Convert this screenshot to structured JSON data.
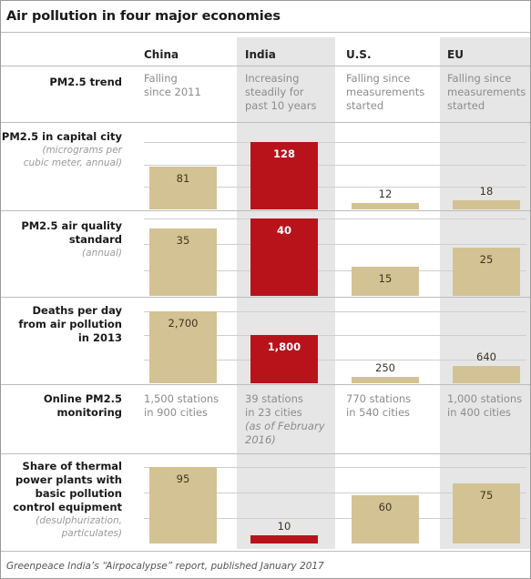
{
  "title": "Air pollution in four major economies",
  "footnote": "Greenpeace India’s “Airpocalypse” report, published January 2017",
  "columns": [
    "China",
    "India",
    "U.S.",
    "EU"
  ],
  "colors": {
    "tan": "#d3c293",
    "red": "#b8131b",
    "shade": "#e6e6e6"
  },
  "rows": {
    "trend": {
      "label": "PM2.5 trend",
      "cells": [
        [
          "Falling",
          "since 2011"
        ],
        [
          "Increasing",
          "steadily for",
          "past 10 years"
        ],
        [
          "Falling since",
          "measurements",
          "started"
        ],
        [
          "Falling since",
          "measurements",
          "started"
        ]
      ]
    },
    "capital": {
      "label": [
        "PM2.5 in capital city"
      ],
      "sub": [
        "(micrograms per",
        "cubic meter, annual)"
      ]
    },
    "standard": {
      "label": [
        "PM2.5 air quality",
        "standard"
      ],
      "sub": [
        "(annual)"
      ]
    },
    "deaths": {
      "label": [
        "Deaths per day",
        "from air pollution",
        "in 2013"
      ]
    },
    "monitoring": {
      "label": [
        "Online PM2.5",
        "monitoring"
      ],
      "cells": [
        [
          "1,500 stations",
          "in 900 cities"
        ],
        [
          "39 stations",
          "in 23 cities"
        ],
        [
          "770 stations",
          "in 540 cities"
        ],
        [
          "1,000 stations",
          "in 400 cities"
        ]
      ],
      "india_note": [
        "(as of February",
        "2016)"
      ]
    },
    "thermal": {
      "label": [
        "Share of thermal",
        "power plants with",
        "basic pollution",
        "control equipment"
      ],
      "sub": [
        "(desulphurization,",
        "particulates)"
      ]
    }
  },
  "chart_data": [
    {
      "type": "bar",
      "title": "PM2.5 in capital city",
      "subtitle": "(micrograms per cubic meter, annual)",
      "categories": [
        "China",
        "India",
        "U.S.",
        "EU"
      ],
      "values": [
        81,
        128,
        12,
        18
      ],
      "labels": [
        "81",
        "128",
        "12",
        "18"
      ],
      "highlight": "India"
    },
    {
      "type": "bar",
      "title": "PM2.5 air quality standard",
      "subtitle": "(annual)",
      "categories": [
        "China",
        "India",
        "U.S.",
        "EU"
      ],
      "values": [
        35,
        40,
        15,
        25
      ],
      "labels": [
        "35",
        "40",
        "15",
        "25"
      ],
      "highlight": "India"
    },
    {
      "type": "bar",
      "title": "Deaths per day from air pollution in 2013",
      "categories": [
        "China",
        "India",
        "U.S.",
        "EU"
      ],
      "values": [
        2700,
        1800,
        250,
        640
      ],
      "labels": [
        "2,700",
        "1,800",
        "250",
        "640"
      ],
      "highlight": "India"
    },
    {
      "type": "bar",
      "title": "Share of thermal power plants with basic pollution control equipment",
      "subtitle": "(desulphurization, particulates)",
      "categories": [
        "China",
        "India",
        "U.S.",
        "EU"
      ],
      "values": [
        95,
        10,
        60,
        75
      ],
      "labels": [
        "95",
        "10",
        "60",
        "75"
      ],
      "highlight": "India"
    }
  ]
}
